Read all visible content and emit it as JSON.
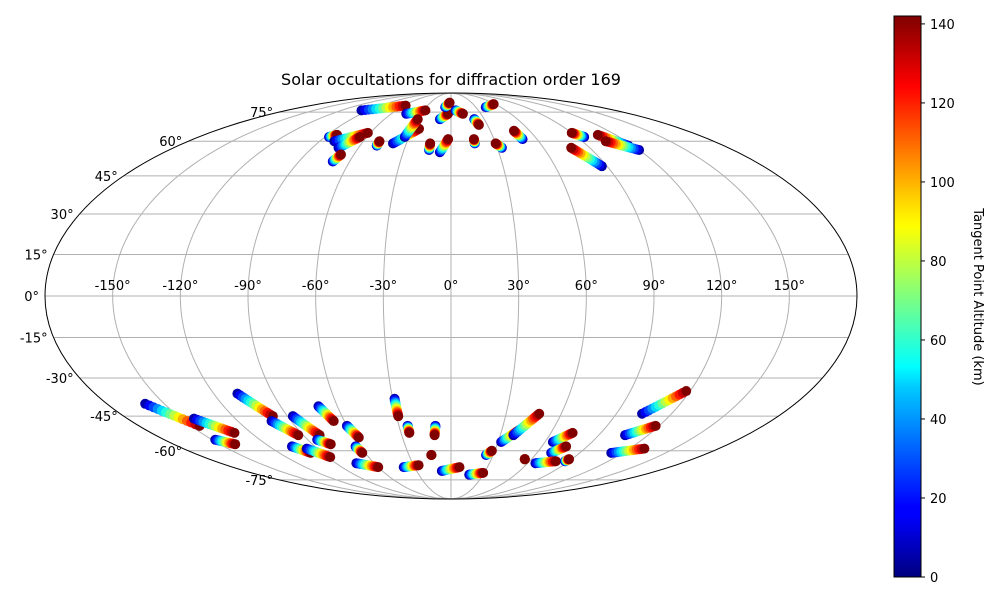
{
  "chart_data": {
    "type": "scatter",
    "projection": "mollweide",
    "title": "Solar occultations for diffraction order 169",
    "grid": true,
    "xlabel": "",
    "ylabel": "",
    "lon_ticks": [
      -150,
      -120,
      -90,
      -60,
      -30,
      0,
      30,
      60,
      90,
      120,
      150
    ],
    "lon_tick_labels": [
      "-150°",
      "-120°",
      "-90°",
      "-60°",
      "-30°",
      "0°",
      "30°",
      "60°",
      "90°",
      "120°",
      "150°"
    ],
    "lat_ticks": [
      -75,
      -60,
      -45,
      -30,
      -15,
      0,
      15,
      30,
      45,
      60,
      75
    ],
    "lat_tick_labels": [
      "-75°",
      "-60°",
      "-45°",
      "-30°",
      "-15°",
      "0°",
      "15°",
      "30°",
      "45°",
      "60°",
      "75°"
    ],
    "colorbar": {
      "label": "Tangent Point Altitude (km)",
      "range": [
        0,
        142
      ],
      "ticks": [
        0,
        20,
        40,
        60,
        80,
        100,
        120,
        140
      ],
      "tick_labels": [
        "0",
        "20",
        "40",
        "60",
        "80",
        "100",
        "120",
        "140"
      ],
      "colormap": "jet"
    },
    "series": [
      {
        "name": "occultations",
        "tracks": [
          {
            "lon_start": -98,
            "lat_start": 76,
            "lon_end": -58,
            "lat_end": 79
          },
          {
            "lon_start": -87,
            "lat_start": 62,
            "lon_end": -83,
            "lat_end": 63
          },
          {
            "lon_start": -80,
            "lat_start": 60,
            "lon_end": -62,
            "lat_end": 64
          },
          {
            "lon_start": -73,
            "lat_start": 57,
            "lon_end": -65,
            "lat_end": 62
          },
          {
            "lon_start": -70,
            "lat_start": 51,
            "lon_end": -68,
            "lat_end": 54
          },
          {
            "lon_start": -49,
            "lat_start": 58,
            "lon_end": -49,
            "lat_end": 60
          },
          {
            "lon_start": -45,
            "lat_start": 74,
            "lon_end": -28,
            "lat_end": 76
          },
          {
            "lon_start": -39,
            "lat_start": 59,
            "lon_end": -25,
            "lat_end": 66
          },
          {
            "lon_start": -33,
            "lat_start": 62,
            "lon_end": -30,
            "lat_end": 71
          },
          {
            "lon_start": -14,
            "lat_start": 56,
            "lon_end": -14,
            "lat_end": 59
          },
          {
            "lon_start": -7,
            "lat_start": 55,
            "lon_end": -2,
            "lat_end": 61
          },
          {
            "lon_start": -10,
            "lat_start": 71,
            "lon_end": -3,
            "lat_end": 74
          },
          {
            "lon_start": -7,
            "lat_start": 78,
            "lon_end": -2,
            "lat_end": 81
          },
          {
            "lon_start": 5,
            "lat_start": 76,
            "lon_end": 12,
            "lat_end": 74
          },
          {
            "lon_start": 16,
            "lat_start": 59,
            "lon_end": 16,
            "lat_end": 61
          },
          {
            "lon_start": 21,
            "lat_start": 71,
            "lon_end": 23,
            "lat_end": 68
          },
          {
            "lon_start": 33,
            "lat_start": 57,
            "lon_end": 30,
            "lat_end": 59
          },
          {
            "lon_start": 42,
            "lat_start": 78,
            "lon_end": 58,
            "lat_end": 80
          },
          {
            "lon_start": 50,
            "lat_start": 61,
            "lon_end": 48,
            "lat_end": 65
          },
          {
            "lon_start": 87,
            "lat_start": 49,
            "lon_end": 78,
            "lat_end": 57
          },
          {
            "lon_start": 95,
            "lat_start": 62,
            "lon_end": 90,
            "lat_end": 64
          },
          {
            "lon_start": 117,
            "lat_start": 58,
            "lon_end": 107,
            "lat_end": 63
          },
          {
            "lon_start": 120,
            "lat_start": 56,
            "lon_end": 106,
            "lat_end": 60
          },
          {
            "lon_start": -160,
            "lat_start": -40,
            "lon_end": -145,
            "lat_end": -49
          },
          {
            "lon_start": -143,
            "lat_start": -46,
            "lon_end": -130,
            "lat_end": -52
          },
          {
            "lon_start": -148,
            "lat_start": -55,
            "lon_end": -140,
            "lat_end": -57
          },
          {
            "lon_start": -108,
            "lat_start": -36,
            "lon_end": -98,
            "lat_end": -45
          },
          {
            "lon_start": -101,
            "lat_start": -47,
            "lon_end": -93,
            "lat_end": -53
          },
          {
            "lon_start": -105,
            "lat_start": -58,
            "lon_end": -98,
            "lat_end": -61
          },
          {
            "lon_start": -97,
            "lat_start": -59,
            "lon_end": -88,
            "lat_end": -63
          },
          {
            "lon_start": -87,
            "lat_start": -45,
            "lon_end": -80,
            "lat_end": -53
          },
          {
            "lon_start": -84,
            "lat_start": -55,
            "lon_end": -78,
            "lat_end": -57
          },
          {
            "lon_start": -70,
            "lat_start": -41,
            "lon_end": -66,
            "lat_end": -47
          },
          {
            "lon_start": -60,
            "lat_start": -49,
            "lon_end": -57,
            "lat_end": -54
          },
          {
            "lon_start": -63,
            "lat_start": -58,
            "lon_end": -62,
            "lat_end": -61
          },
          {
            "lon_start": -74,
            "lat_start": -66,
            "lon_end": -60,
            "lat_end": -68
          },
          {
            "lon_start": -39,
            "lat_start": -68,
            "lon_end": -26,
            "lat_end": -67
          },
          {
            "lon_start": -29,
            "lat_start": -38,
            "lon_end": -29,
            "lat_end": -45
          },
          {
            "lon_start": -25,
            "lat_start": -49,
            "lon_end": -25,
            "lat_end": -52
          },
          {
            "lon_start": -9,
            "lat_start": -49,
            "lon_end": -10,
            "lat_end": -53
          },
          {
            "lon_start": -14,
            "lat_start": -62,
            "lon_end": -14,
            "lat_end": -62
          },
          {
            "lon_start": -8,
            "lat_start": -70,
            "lon_end": 7,
            "lat_end": -68
          },
          {
            "lon_start": 17,
            "lat_start": -72,
            "lon_end": 29,
            "lat_end": -71
          },
          {
            "lon_start": 25,
            "lat_start": -62,
            "lon_end": 28,
            "lat_end": -60
          },
          {
            "lon_start": 32,
            "lat_start": -56,
            "lon_end": 40,
            "lat_end": -51
          },
          {
            "lon_start": 38,
            "lat_start": -53,
            "lon_end": 48,
            "lat_end": -44
          },
          {
            "lon_start": 55,
            "lat_start": -64,
            "lon_end": 55,
            "lat_end": -64
          },
          {
            "lon_start": 65,
            "lat_start": -56,
            "lon_end": 73,
            "lat_end": -52
          },
          {
            "lon_start": 70,
            "lat_start": -61,
            "lon_end": 76,
            "lat_end": -58
          },
          {
            "lon_start": 66,
            "lat_start": -66,
            "lon_end": 80,
            "lat_end": -65
          },
          {
            "lon_start": 87,
            "lat_start": -65,
            "lon_end": 88,
            "lat_end": -64
          },
          {
            "lon_start": 104,
            "lat_start": -44,
            "lon_end": 118,
            "lat_end": -35
          },
          {
            "lon_start": 106,
            "lat_start": -53,
            "lon_end": 118,
            "lat_end": -49
          },
          {
            "lon_start": 112,
            "lat_start": -61,
            "lon_end": 130,
            "lat_end": -59
          }
        ]
      }
    ]
  }
}
